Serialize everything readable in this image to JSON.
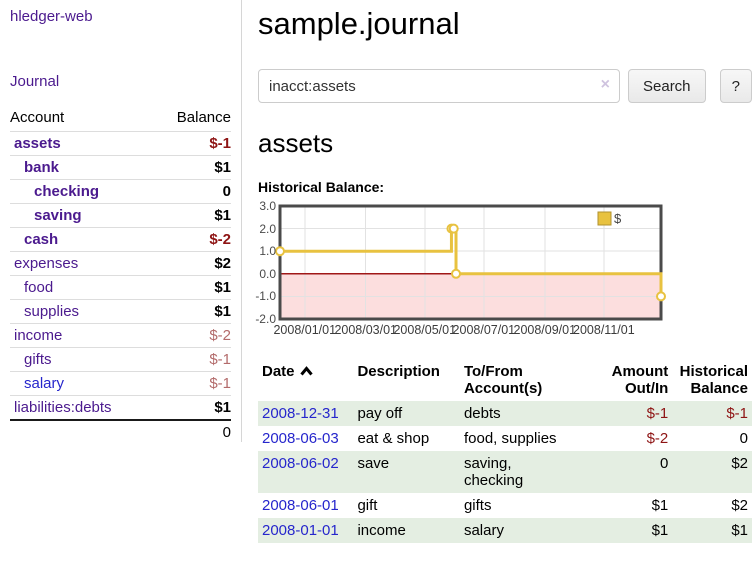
{
  "app": {
    "title": "hledger-web",
    "nav_journal": "Journal"
  },
  "colors": {
    "purple_link": "#4b1a8e",
    "blue_link": "#2626cc",
    "negative_strong": "#8e1414",
    "negative_soft": "#b36b6b",
    "row_green": "#e4eee2",
    "series_gold": "#e8c240"
  },
  "sidebar": {
    "col_account": "Account",
    "col_balance": "Balance",
    "rows": [
      {
        "name": "assets",
        "balance": "$-1"
      },
      {
        "name": "bank",
        "balance": "$1"
      },
      {
        "name": "checking",
        "balance": "0"
      },
      {
        "name": "saving",
        "balance": "$1"
      },
      {
        "name": "cash",
        "balance": "$-2"
      },
      {
        "name": "expenses",
        "balance": "$2"
      },
      {
        "name": "food",
        "balance": "$1"
      },
      {
        "name": "supplies",
        "balance": "$1"
      },
      {
        "name": "income",
        "balance": "$-2"
      },
      {
        "name": "gifts",
        "balance": "$-1"
      },
      {
        "name": "salary",
        "balance": "$-1"
      },
      {
        "name": "liabilities:debts",
        "balance": "$1"
      }
    ],
    "total": "0"
  },
  "main": {
    "title": "sample.journal",
    "search": {
      "value": "inacct:assets",
      "clear_icon": "×",
      "button": "Search",
      "help_button": "?"
    },
    "account_heading": "assets",
    "chart_label": "Historical Balance:"
  },
  "chart_data": {
    "type": "line",
    "title": "Historical Balance:",
    "step": true,
    "legend": {
      "label": "$",
      "position": "top-right",
      "color": "#e8c240"
    },
    "ylim": [
      -2,
      3
    ],
    "yticks": [
      3.0,
      2.0,
      1.0,
      0.0,
      -1.0,
      -2.0
    ],
    "ytick_labels": [
      "3.0",
      "2.0",
      "1.0",
      "0.0",
      "-1.0",
      "-2.0"
    ],
    "xticks": [
      {
        "f": 0.065,
        "label": "2008/01/01"
      },
      {
        "f": 0.225,
        "label": "2008/03/01"
      },
      {
        "f": 0.38,
        "label": "2008/05/01"
      },
      {
        "f": 0.535,
        "label": "2008/07/01"
      },
      {
        "f": 0.695,
        "label": "2008/09/01"
      },
      {
        "f": 0.85,
        "label": "2008/11/01"
      }
    ],
    "series": [
      {
        "name": "$",
        "color": "#e8c240",
        "values_by_date": [
          [
            "2008-01-01",
            1
          ],
          [
            "2008-06-01",
            2
          ],
          [
            "2008-06-02",
            2
          ],
          [
            "2008-06-03",
            0
          ],
          [
            "2008-12-31",
            -1
          ]
        ],
        "points": [
          {
            "x": 0.0,
            "y": 1
          },
          {
            "x": 0.45,
            "y": 2
          },
          {
            "x": 0.456,
            "y": 2
          },
          {
            "x": 0.462,
            "y": 0
          },
          {
            "x": 1.0,
            "y": -1
          }
        ]
      }
    ],
    "negative_fill": "#fcdede",
    "zero_line_color": "#a01818",
    "grid": true,
    "grid_color": "#e2e2e2",
    "border_color": "#4a4a4a"
  },
  "register": {
    "headers": {
      "date": "Date",
      "description": "Description",
      "accounts": "To/From\nAccount(s)",
      "amount": "Amount\nOut/In",
      "balance": "Historical\nBalance"
    },
    "rows": [
      {
        "date": "2008-12-31",
        "description": "pay off",
        "accounts": "debts",
        "amount": "$-1",
        "balance": "$-1"
      },
      {
        "date": "2008-06-03",
        "description": "eat & shop",
        "accounts": "food, supplies",
        "amount": "$-2",
        "balance": "0"
      },
      {
        "date": "2008-06-02",
        "description": "save",
        "accounts": "saving,\nchecking",
        "amount": "0",
        "balance": "$2"
      },
      {
        "date": "2008-06-01",
        "description": "gift",
        "accounts": "gifts",
        "amount": "$1",
        "balance": "$2"
      },
      {
        "date": "2008-01-01",
        "description": "income",
        "accounts": "salary",
        "amount": "$1",
        "balance": "$1"
      }
    ]
  }
}
